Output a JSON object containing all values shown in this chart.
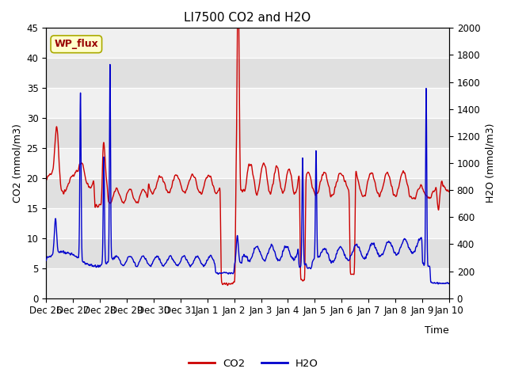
{
  "title": "LI7500 CO2 and H2O",
  "xlabel": "Time",
  "ylabel_left": "CO2 (mmol/m3)",
  "ylabel_right": "H2O (mmol/m3)",
  "ylim_left": [
    0,
    45
  ],
  "ylim_right": [
    0,
    2000
  ],
  "yticks_left": [
    0,
    5,
    10,
    15,
    20,
    25,
    30,
    35,
    40,
    45
  ],
  "yticks_right": [
    0,
    200,
    400,
    600,
    800,
    1000,
    1200,
    1400,
    1600,
    1800,
    2000
  ],
  "annotation_text": "WP_flux",
  "co2_color": "#cc0000",
  "h2o_color": "#0000cc",
  "background_color": "#ffffff",
  "band_light": "#f0f0f0",
  "band_dark": "#d8d8d8",
  "grid_color": "#ffffff",
  "n_points": 3000,
  "title_fontsize": 11,
  "label_fontsize": 9,
  "tick_fontsize": 8.5
}
